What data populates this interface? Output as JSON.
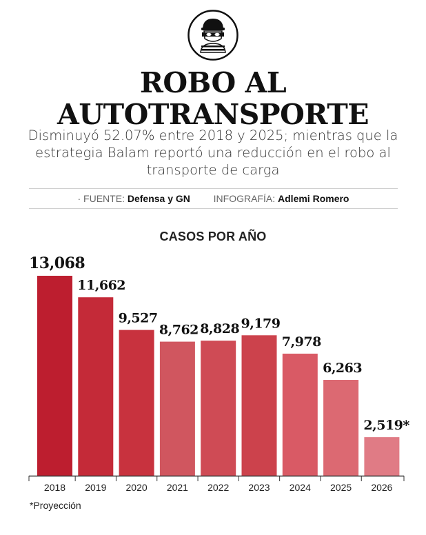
{
  "header": {
    "title_line1": "ROBO AL",
    "title_line2": "AUTOTRANSPORTE",
    "subtitle": "Disminuyó 52.07% entre 2018 y 2025; mientras que la estrategia Balam reportó una reducción en el robo al transporte de carga"
  },
  "credits": {
    "source_key": "· FUENTE:",
    "source_value": "Defensa y GN",
    "graphic_key": "INFOGRAFÍA:",
    "graphic_value": "Adlemi Romero"
  },
  "icon": "thief-mask-icon",
  "footnote": "*Proyección",
  "chart_data": {
    "type": "bar",
    "title": "CASOS POR AÑO",
    "categories": [
      "2018",
      "2019",
      "2020",
      "2021",
      "2022",
      "2023",
      "2024",
      "2025",
      "2026"
    ],
    "values": [
      13068,
      11662,
      9527,
      8762,
      8828,
      9179,
      7978,
      6263,
      2519
    ],
    "labels": [
      "13,068",
      "11,662",
      "9,527",
      "8,762",
      "8,828",
      "9,179",
      "7,978",
      "6,263",
      "2,519*"
    ],
    "colors": [
      "#bd1e2f",
      "#c42a38",
      "#c8323e",
      "#d0565f",
      "#cf4b55",
      "#cc424c",
      "#d95a65",
      "#dc6972",
      "#e07b85"
    ],
    "ylim": [
      0,
      13068
    ],
    "grid": false
  }
}
